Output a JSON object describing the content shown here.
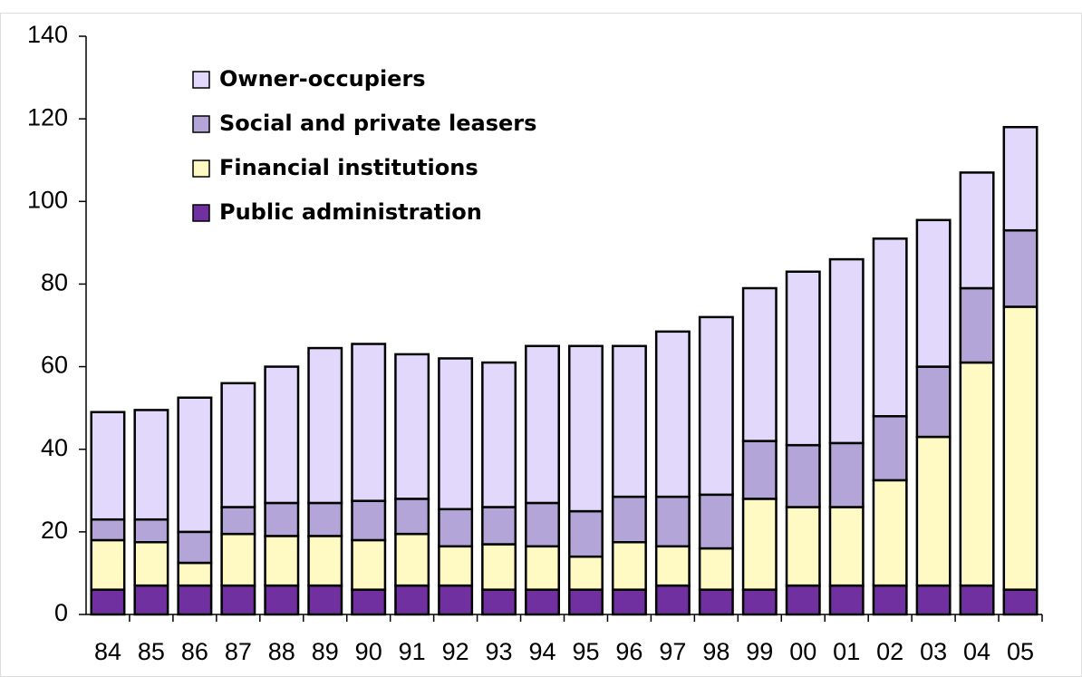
{
  "chart_data": {
    "type": "stacked_bar",
    "categories": [
      "84",
      "85",
      "86",
      "87",
      "88",
      "89",
      "90",
      "91",
      "92",
      "93",
      "94",
      "95",
      "96",
      "97",
      "98",
      "99",
      "00",
      "01",
      "02",
      "03",
      "04",
      "05"
    ],
    "series": [
      {
        "name": "Public administration",
        "color": "#7030a0",
        "values": [
          6,
          7,
          7,
          7,
          7,
          7,
          6,
          7,
          7,
          6,
          6,
          6,
          6,
          7,
          6,
          6,
          7,
          7,
          7,
          7,
          7,
          6
        ]
      },
      {
        "name": "Financial institutions",
        "color": "#fff9c4",
        "values": [
          12,
          10.5,
          5.5,
          12.5,
          12,
          12,
          12,
          12.5,
          9.5,
          11,
          10.5,
          8,
          11.5,
          9.5,
          10,
          22,
          19,
          19,
          25.5,
          36,
          54,
          68.5
        ]
      },
      {
        "name": "Social and private leasers",
        "color": "#b4a5d8",
        "values": [
          5,
          5.5,
          7.5,
          6.5,
          8,
          8,
          9.5,
          8.5,
          9,
          9,
          10.5,
          11,
          11,
          12,
          13,
          14,
          15,
          15.5,
          15.5,
          17,
          18,
          18.5
        ]
      },
      {
        "name": "Owner-occupiers",
        "color": "#e2d8fb",
        "values": [
          26,
          26.5,
          32.5,
          30,
          33,
          37.5,
          38,
          35,
          36.5,
          35,
          38,
          40,
          36.5,
          40,
          43,
          37,
          42,
          44.5,
          43,
          35.5,
          28,
          25
        ]
      }
    ],
    "ylim": [
      0,
      140
    ],
    "yticks": [
      0,
      20,
      40,
      60,
      80,
      100,
      120,
      140
    ],
    "legend": "upper-left"
  }
}
